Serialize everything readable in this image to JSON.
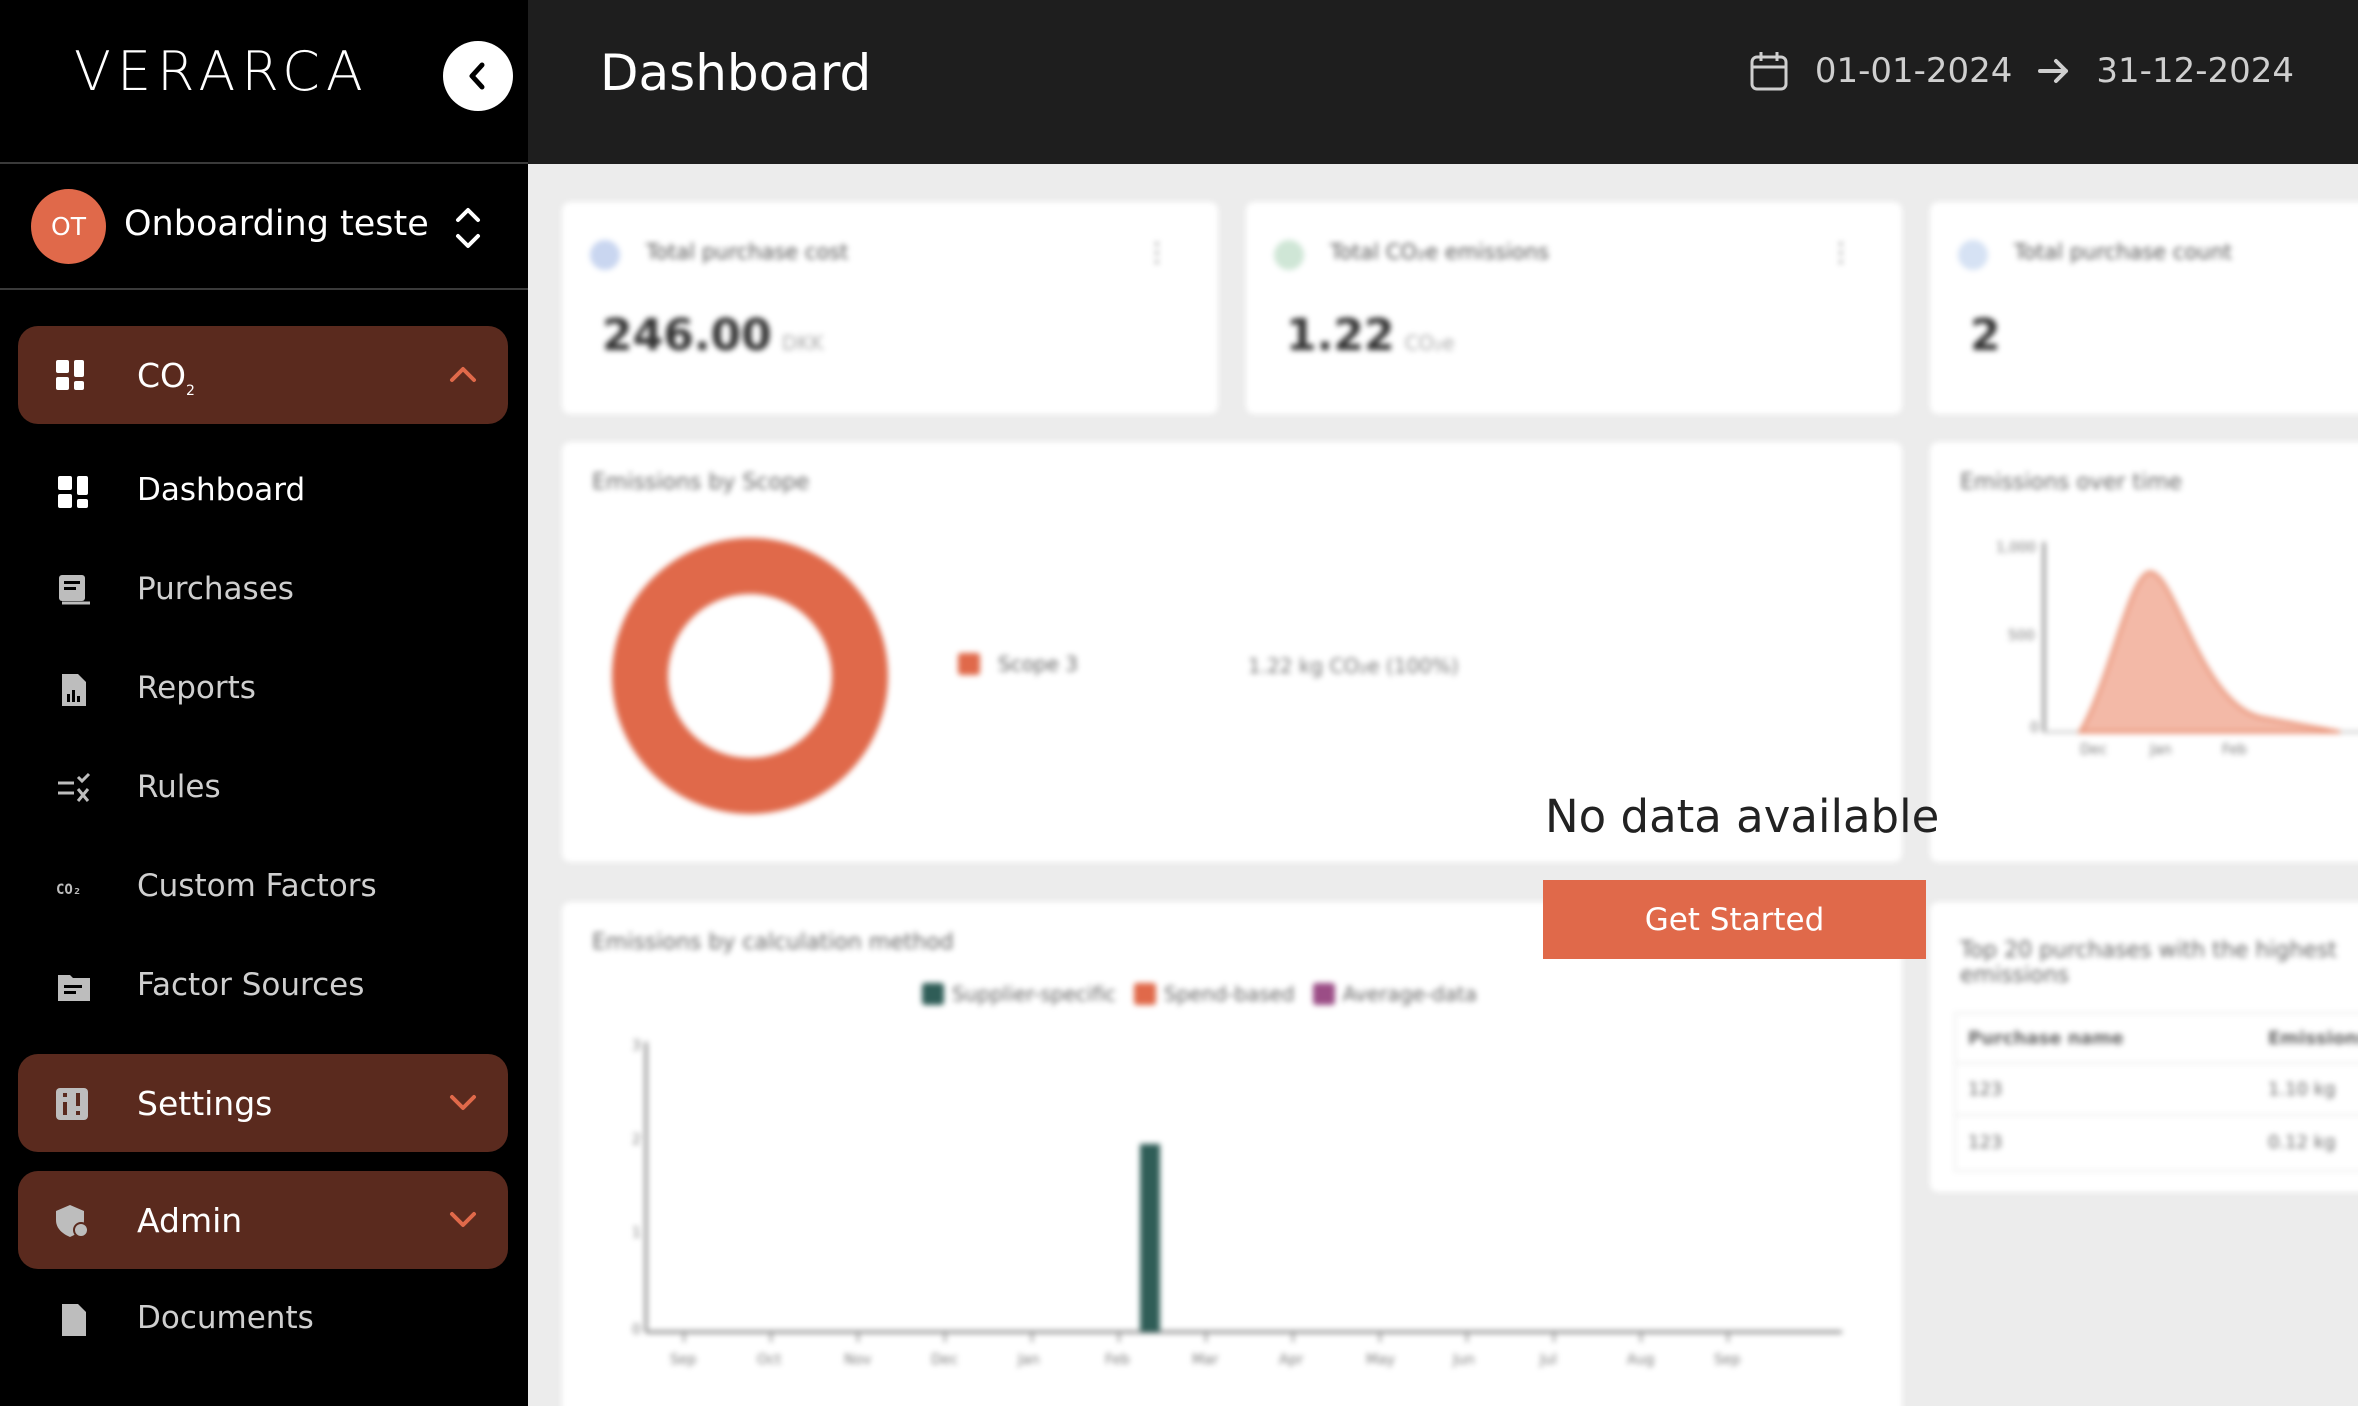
{
  "sidebar": {
    "logo": "VERARCA",
    "org": {
      "initials": "OT",
      "name": "Onboarding tester"
    },
    "groups": {
      "co2": {
        "label": "CO",
        "sub": "2"
      },
      "settings": {
        "label": "Settings"
      },
      "admin": {
        "label": "Admin"
      }
    },
    "items": [
      {
        "label": "Dashboard",
        "active": true
      },
      {
        "label": "Purchases"
      },
      {
        "label": "Reports"
      },
      {
        "label": "Rules"
      },
      {
        "label": "Custom Factors"
      },
      {
        "label": "Factor Sources"
      },
      {
        "label": "Documents"
      }
    ]
  },
  "header": {
    "title": "Dashboard",
    "date_from": "01-01-2024",
    "date_to": "31-12-2024"
  },
  "dashboard": {
    "kpis": [
      {
        "title": "Total purchase cost",
        "value": "246.00",
        "unit": "DKK"
      },
      {
        "title": "Total CO₂e emissions",
        "value": "1.22",
        "unit": "CO₂e"
      },
      {
        "title": "Total purchase count",
        "value": "2",
        "unit": ""
      }
    ],
    "scope_card": {
      "title": "Emissions by Scope",
      "legend": "Scope 3",
      "value_text": "1.22 kg CO₂e (100%)"
    },
    "time_card": {
      "title": "Emissions over time",
      "y_ticks": [
        "1,000",
        "500",
        "0"
      ],
      "x_ticks": [
        "Dec",
        "Jan",
        "Feb"
      ]
    },
    "method_card": {
      "title": "Emissions by calculation method",
      "legend": [
        "Supplier-specific",
        "Spend-based",
        "Average-data"
      ],
      "y_ticks": [
        "3",
        "2",
        "1",
        "0"
      ],
      "months": [
        "Sep",
        "Oct",
        "Nov",
        "Dec",
        "Jan",
        "Feb",
        "Mar",
        "Apr",
        "May",
        "Jun",
        "Jul",
        "Aug",
        "Sep"
      ]
    },
    "top_card": {
      "title": "Top 20 purchases with the highest emissions",
      "headers": [
        "Purchase name",
        "Emissions"
      ],
      "rows": [
        [
          "123",
          "1.10 kg"
        ],
        [
          "123",
          "0.12 kg"
        ]
      ]
    }
  },
  "overlay": {
    "message": "No data available",
    "button": "Get Started"
  },
  "colors": {
    "accent": "#e0694a",
    "group_bg": "#5a2a1e",
    "header_bg": "#1e1e1e",
    "sidebar_bg": "#000000",
    "supplier": "#2f5d57",
    "average": "#9b4d86"
  }
}
